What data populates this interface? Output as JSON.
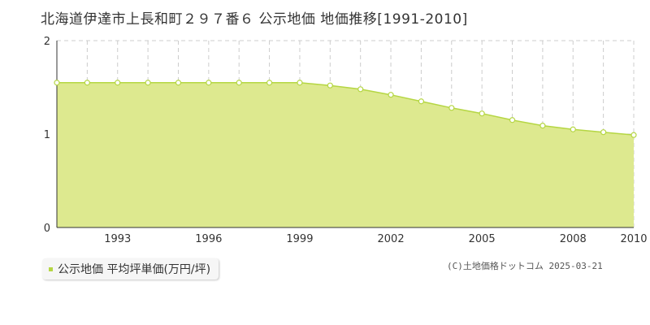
{
  "title": "北海道伊達市上長和町２９７番６ 公示地価 地価推移[1991-2010]",
  "credit": "(C)土地価格ドットコム 2025-03-21",
  "colors": {
    "area_fill": "#dde98f",
    "line": "#b5d643",
    "grid": "#cccccc",
    "axis": "#333333",
    "point_fill": "#ffffff",
    "legend_marker": "#b5d643"
  },
  "chart_data": {
    "type": "area",
    "title": "北海道伊達市上長和町２９７番６ 公示地価 地価推移[1991-2010]",
    "x": [
      1991,
      1992,
      1993,
      1994,
      1995,
      1996,
      1997,
      1998,
      1999,
      2000,
      2001,
      2002,
      2003,
      2004,
      2005,
      2006,
      2007,
      2008,
      2009,
      2010
    ],
    "series": [
      {
        "name": "公示地価 平均坪単価(万円/坪)",
        "values": [
          1.55,
          1.55,
          1.55,
          1.55,
          1.55,
          1.55,
          1.55,
          1.55,
          1.55,
          1.52,
          1.48,
          1.42,
          1.35,
          1.28,
          1.22,
          1.15,
          1.09,
          1.05,
          1.02,
          0.99
        ]
      }
    ],
    "xlim": [
      1991,
      2010
    ],
    "ylim": [
      0,
      2
    ],
    "x_ticks": [
      "1993",
      "1996",
      "1999",
      "2002",
      "2005",
      "2008",
      "2010"
    ],
    "y_ticks": [
      "0",
      "1",
      "2"
    ],
    "grid": true,
    "legend_position": "bottom-left"
  }
}
